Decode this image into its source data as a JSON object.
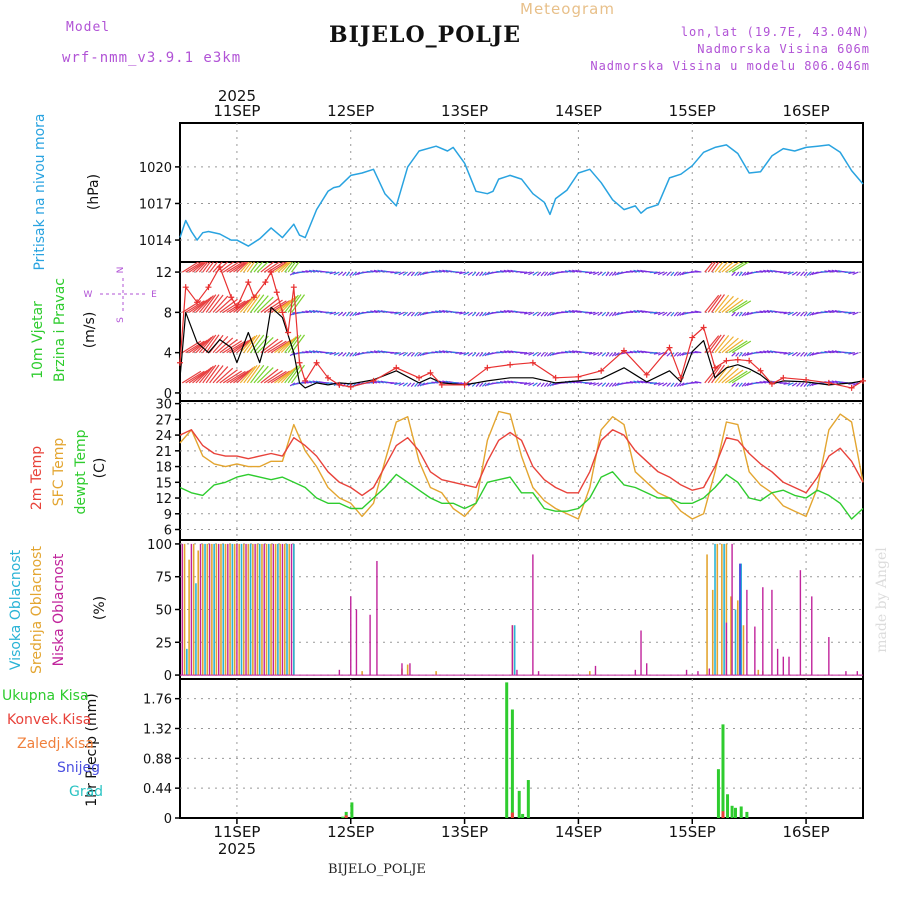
{
  "header": {
    "model_label": "Model",
    "model_name": "wrf-nmm_v3.9.1 e3km",
    "title": "BIJELO_POLJE",
    "chart_label": "Meteogram",
    "lonlat": "lon,lat (19.7E, 43.04N)",
    "altitude": "Nadmorska Visina 606m",
    "model_altitude": "Nadmorska Visina u modelu 806.046m"
  },
  "footer": {
    "station": "BIJELO_POLJE",
    "watermark": "made by Angel"
  },
  "colors": {
    "pressure": "#29a3e0",
    "wind_speed": "#000000",
    "gusts": "#e83030",
    "t2m": "#e8423a",
    "tsfc": "#e3a530",
    "dewpt": "#2ecc2e",
    "high_cloud": "#2ab3d6",
    "mid_cloud": "#e3a530",
    "low_cloud": "#c0239b",
    "total_rain": "#2ecc2e",
    "conv_rain": "#e8423a",
    "frz_rain": "#f0803c",
    "snow": "#4b50e0",
    "hail": "#2ac3c3",
    "barb_fast": "#e84040",
    "barb_slow": "#7a2de0"
  },
  "chart_data": [
    {
      "type": "line",
      "id": "pressure",
      "ylabel_name": "Pritisak na nivou mora",
      "ylabel_unit": "(hPa)",
      "ylim": [
        1012.2,
        1023.6
      ],
      "yticks": [
        1014,
        1017,
        1020
      ],
      "x_unit": "day index (0 = 11SEP 00UTC)",
      "xlim": [
        -0.5,
        5.5
      ],
      "x": [
        -0.5,
        -0.45,
        -0.4,
        -0.35,
        -0.3,
        -0.25,
        -0.15,
        -0.05,
        0,
        0.1,
        0.2,
        0.3,
        0.4,
        0.5,
        0.55,
        0.6,
        0.7,
        0.8,
        0.85,
        0.9,
        1,
        1.1,
        1.2,
        1.3,
        1.4,
        1.5,
        1.6,
        1.75,
        1.85,
        1.9,
        2,
        2.1,
        2.2,
        2.25,
        2.3,
        2.4,
        2.5,
        2.6,
        2.7,
        2.75,
        2.8,
        2.9,
        3,
        3.1,
        3.2,
        3.3,
        3.4,
        3.5,
        3.55,
        3.6,
        3.7,
        3.8,
        3.9,
        4,
        4.1,
        4.2,
        4.3,
        4.4,
        4.5,
        4.6,
        4.7,
        4.75,
        4.8,
        4.9,
        5,
        5.1,
        5.2,
        5.3,
        5.4,
        5.5
      ],
      "values": [
        1014.2,
        1015.6,
        1014.7,
        1014.0,
        1014.6,
        1014.7,
        1014.5,
        1014.0,
        1014.0,
        1013.5,
        1014.1,
        1015.0,
        1014.2,
        1015.3,
        1014.4,
        1014.2,
        1016.5,
        1018.0,
        1018.3,
        1018.4,
        1019.3,
        1019.5,
        1019.8,
        1017.8,
        1016.8,
        1020.0,
        1021.3,
        1021.7,
        1021.3,
        1021.6,
        1020.3,
        1018.0,
        1017.8,
        1018.0,
        1019.0,
        1019.3,
        1019.0,
        1017.8,
        1017.1,
        1016.1,
        1017.4,
        1018.1,
        1019.5,
        1019.8,
        1018.7,
        1017.3,
        1016.5,
        1016.8,
        1016.2,
        1016.6,
        1016.9,
        1019.1,
        1019.4,
        1020.1,
        1021.2,
        1021.6,
        1021.8,
        1021.1,
        1019.5,
        1019.6,
        1020.9,
        1021.2,
        1021.5,
        1021.3,
        1021.6,
        1021.7,
        1021.8,
        1021.2,
        1019.7,
        1018.6
      ]
    },
    {
      "type": "line",
      "id": "wind",
      "ylabel_name": "10m Vjetar",
      "ylabel_name2": "Brzina i Pravac",
      "ylabel_unit": "(m/s)",
      "compass": [
        "N",
        "S",
        "W",
        "E"
      ],
      "ylim": [
        -0.8,
        13
      ],
      "yticks": [
        0,
        4,
        8,
        12
      ],
      "xlim": [
        -0.5,
        5.5
      ],
      "barb_row_levels": [
        12,
        8,
        4,
        1
      ],
      "wind_speed": {
        "x": [
          -0.5,
          -0.45,
          -0.35,
          -0.25,
          -0.15,
          -0.05,
          0,
          0.1,
          0.2,
          0.25,
          0.3,
          0.4,
          0.5,
          0.55,
          0.6,
          0.7,
          0.8,
          0.9,
          1,
          1.2,
          1.4,
          1.6,
          1.7,
          1.8,
          2,
          2.2,
          2.4,
          2.6,
          2.8,
          3,
          3.2,
          3.4,
          3.6,
          3.8,
          3.9,
          4,
          4.1,
          4.2,
          4.3,
          4.4,
          4.5,
          4.6,
          4.7,
          4.8,
          5,
          5.2,
          5.4,
          5.5
        ],
        "values": [
          1.5,
          8,
          5,
          4,
          5.3,
          4.5,
          3,
          6,
          3,
          5,
          8.5,
          7.5,
          4,
          1,
          0.5,
          1,
          0.8,
          1,
          0.9,
          1.3,
          2.2,
          1,
          1.5,
          1,
          0.8,
          1.2,
          1.5,
          1.5,
          1,
          1.2,
          1.4,
          2.5,
          1.1,
          2.2,
          1.1,
          4.1,
          5.2,
          1.5,
          2.5,
          2.8,
          2.4,
          1.8,
          0.9,
          1.2,
          1.1,
          0.8,
          1,
          1.2
        ]
      },
      "gusts": {
        "x": [
          -0.5,
          -0.45,
          -0.35,
          -0.25,
          -0.15,
          -0.05,
          0,
          0.1,
          0.15,
          0.25,
          0.3,
          0.35,
          0.4,
          0.45,
          0.5,
          0.55,
          0.6,
          0.7,
          0.8,
          0.9,
          1,
          1.2,
          1.4,
          1.6,
          1.7,
          1.8,
          2,
          2.2,
          2.4,
          2.6,
          2.8,
          3,
          3.2,
          3.4,
          3.6,
          3.8,
          3.9,
          4,
          4.1,
          4.2,
          4.3,
          4.4,
          4.5,
          4.6,
          4.7,
          4.8,
          5,
          5.2,
          5.4,
          5.5
        ],
        "values": [
          3,
          10.5,
          9,
          10.5,
          12.5,
          9.5,
          8.5,
          11,
          9.5,
          11,
          12,
          10,
          8,
          6,
          10.5,
          3,
          1.2,
          3,
          1.5,
          0.8,
          0.6,
          1.2,
          2.5,
          1.5,
          2,
          0.8,
          0.8,
          2.5,
          2.8,
          3,
          1.5,
          1.6,
          2.2,
          4.2,
          1.8,
          4.5,
          1.5,
          5.5,
          6.5,
          2.5,
          3.2,
          3.3,
          3.2,
          2.2,
          0.9,
          1.5,
          1.3,
          1,
          0.5,
          1.2
        ]
      }
    },
    {
      "type": "line",
      "id": "temperature",
      "ylabel_name": "2m Temp",
      "ylabel_name2": "SFC Temp",
      "ylabel_name3": "dewpt Temp",
      "ylabel_unit": "(C)",
      "ylim": [
        4,
        30.5
      ],
      "yticks": [
        6,
        9,
        12,
        15,
        18,
        21,
        24,
        27,
        30
      ],
      "xlim": [
        -0.5,
        5.5
      ],
      "t2m": {
        "x": [
          -0.5,
          -0.4,
          -0.3,
          -0.2,
          -0.1,
          0,
          0.1,
          0.2,
          0.3,
          0.4,
          0.5,
          0.6,
          0.7,
          0.8,
          0.9,
          1,
          1.1,
          1.2,
          1.3,
          1.4,
          1.5,
          1.6,
          1.7,
          1.8,
          1.9,
          2,
          2.1,
          2.2,
          2.3,
          2.4,
          2.5,
          2.6,
          2.7,
          2.8,
          2.9,
          3,
          3.1,
          3.2,
          3.3,
          3.4,
          3.5,
          3.6,
          3.7,
          3.8,
          3.9,
          4,
          4.1,
          4.2,
          4.3,
          4.4,
          4.5,
          4.6,
          4.7,
          4.8,
          4.9,
          5,
          5.1,
          5.2,
          5.3,
          5.4,
          5.5
        ],
        "values": [
          24,
          25,
          22,
          20.5,
          20,
          20,
          19.5,
          20,
          20.5,
          20,
          23.5,
          22,
          20,
          17,
          15,
          14,
          12.5,
          14,
          18,
          22,
          23.5,
          21,
          17,
          15.5,
          15,
          14.5,
          14,
          19,
          23,
          24.5,
          23,
          18,
          15.5,
          14,
          13,
          13,
          17,
          23,
          25,
          24,
          21,
          19,
          17,
          16,
          14.5,
          13.5,
          14,
          18,
          23.5,
          23,
          20.5,
          18.5,
          17,
          15,
          14,
          13,
          16,
          20,
          21.5,
          19,
          15
        ]
      },
      "tsfc": {
        "x": [
          -0.5,
          -0.4,
          -0.3,
          -0.2,
          -0.1,
          0,
          0.1,
          0.2,
          0.3,
          0.4,
          0.5,
          0.6,
          0.7,
          0.8,
          0.9,
          1,
          1.1,
          1.2,
          1.3,
          1.4,
          1.5,
          1.6,
          1.7,
          1.8,
          1.9,
          2,
          2.1,
          2.2,
          2.3,
          2.4,
          2.5,
          2.6,
          2.7,
          2.8,
          2.9,
          3,
          3.1,
          3.2,
          3.3,
          3.4,
          3.5,
          3.6,
          3.7,
          3.8,
          3.9,
          4,
          4.1,
          4.2,
          4.3,
          4.4,
          4.5,
          4.6,
          4.7,
          4.8,
          4.9,
          5,
          5.1,
          5.2,
          5.3,
          5.4,
          5.5
        ],
        "values": [
          22.5,
          25,
          20,
          18.5,
          18,
          18.5,
          18,
          18,
          19,
          19,
          26,
          21,
          18,
          14,
          12,
          11,
          8.5,
          11,
          19,
          26.5,
          27.5,
          19,
          14,
          13,
          10,
          8.5,
          11,
          23,
          28.5,
          28,
          20,
          14,
          11.5,
          10,
          9,
          8,
          14,
          25,
          27.5,
          26,
          17,
          15,
          13,
          12,
          9.5,
          8,
          9,
          17,
          26.5,
          26,
          17,
          14.5,
          13,
          10.5,
          9.5,
          8.5,
          14,
          25,
          28,
          26.5,
          15
        ]
      },
      "dewpt": {
        "x": [
          -0.5,
          -0.4,
          -0.3,
          -0.2,
          -0.1,
          0,
          0.1,
          0.2,
          0.3,
          0.4,
          0.5,
          0.6,
          0.7,
          0.8,
          0.9,
          1,
          1.1,
          1.2,
          1.3,
          1.4,
          1.5,
          1.6,
          1.7,
          1.8,
          1.9,
          2,
          2.1,
          2.2,
          2.3,
          2.4,
          2.5,
          2.6,
          2.7,
          2.8,
          2.9,
          3,
          3.1,
          3.2,
          3.3,
          3.4,
          3.5,
          3.6,
          3.7,
          3.8,
          3.9,
          4,
          4.1,
          4.2,
          4.3,
          4.4,
          4.5,
          4.6,
          4.7,
          4.8,
          4.9,
          5,
          5.1,
          5.2,
          5.3,
          5.4,
          5.5
        ],
        "values": [
          14,
          13,
          12.5,
          14.5,
          15,
          16,
          16.5,
          16,
          15.5,
          16,
          15,
          14,
          12,
          11,
          11,
          10,
          10,
          12,
          14,
          16.5,
          15,
          13.5,
          12,
          11,
          11,
          10,
          11,
          15,
          15.5,
          16,
          13,
          13,
          10,
          9.5,
          9.5,
          10,
          12,
          16,
          17,
          14.5,
          14,
          13,
          12,
          12,
          11,
          11,
          12,
          14,
          16.5,
          15,
          12,
          11.5,
          13,
          13.5,
          12.5,
          12,
          13.5,
          12.5,
          11,
          8,
          10
        ]
      }
    },
    {
      "type": "bar",
      "id": "cloud",
      "ylabel_name": "Visoka Oblacnost",
      "ylabel_name2": "Srednja Oblacnost",
      "ylabel_name3": "Niska Oblacnost",
      "ylabel_unit": "(%)",
      "ylim": [
        -3,
        103
      ],
      "yticks": [
        0,
        25,
        50,
        75,
        100
      ],
      "xlim": [
        -0.5,
        5.5
      ],
      "mid": {
        "x": [
          -0.46,
          -0.42,
          -0.38,
          -0.34,
          -0.3,
          -0.26,
          -0.22,
          -0.18,
          -0.14,
          -0.1,
          -0.06,
          -0.02,
          0.02,
          0.06,
          0.1,
          0.14,
          0.18,
          0.22,
          0.26,
          0.3,
          0.34,
          0.38,
          0.42,
          0.46,
          0.5,
          1.1,
          1.45,
          1.5,
          1.75,
          2.42,
          3.1,
          4.13,
          4.18,
          4.22,
          4.26,
          4.3,
          4.34,
          4.4,
          4.45,
          4.58,
          4.62
        ],
        "values": [
          100,
          88,
          100,
          95,
          100,
          100,
          100,
          100,
          100,
          100,
          100,
          100,
          100,
          100,
          100,
          100,
          100,
          100,
          100,
          100,
          100,
          100,
          100,
          100,
          100,
          3,
          5,
          8,
          3,
          38,
          3,
          92,
          65,
          100,
          100,
          100,
          60,
          57,
          38,
          4,
          3
        ]
      },
      "high": {
        "x": [
          -0.44,
          -0.36,
          -0.28,
          -0.2,
          -0.12,
          -0.04,
          0.04,
          0.12,
          0.2,
          0.28,
          0.36,
          0.44,
          0.5,
          2.44,
          4.2,
          4.28,
          4.38,
          4.43
        ],
        "values": [
          20,
          70,
          100,
          100,
          100,
          100,
          100,
          100,
          100,
          100,
          100,
          100,
          100,
          38,
          100,
          100,
          50,
          85
        ]
      },
      "low": {
        "x": [
          -0.48,
          -0.4,
          -0.32,
          -0.24,
          -0.16,
          -0.08,
          0,
          0.08,
          0.16,
          0.24,
          0.32,
          0.4,
          0.48,
          0.9,
          1,
          1.05,
          1.17,
          1.23,
          1.45,
          1.52,
          2.42,
          2.46,
          2.6,
          2.65,
          3.15,
          3.5,
          3.55,
          3.6,
          3.95,
          4.05,
          4.15,
          4.3,
          4.35,
          4.42,
          4.48,
          4.55,
          4.62,
          4.7,
          4.75,
          4.8,
          4.85,
          4.95,
          5.05,
          5.2,
          5.35,
          5.45
        ],
        "values": [
          100,
          100,
          100,
          100,
          100,
          100,
          100,
          100,
          100,
          100,
          100,
          100,
          100,
          4,
          60,
          50,
          46,
          87,
          9,
          9,
          38,
          4,
          92,
          3,
          7,
          4,
          34,
          9,
          4,
          3,
          5,
          40,
          100,
          60,
          65,
          37,
          67,
          65,
          20,
          14,
          14,
          80,
          60,
          29,
          3,
          3
        ]
      }
    },
    {
      "type": "bar",
      "id": "precip",
      "ylabel_name": "1hr Precip",
      "ylabel_unit": "(mm)",
      "legend": [
        "Ukupna Kisa",
        "Konvek.Kisa",
        "Zaledj.Kisa",
        "Snijeg",
        "Grad"
      ],
      "ylim": [
        0,
        2.05
      ],
      "yticks": [
        0,
        0.44,
        0.88,
        1.32,
        1.76
      ],
      "xlim": [
        -0.5,
        5.5
      ],
      "total": {
        "x": [
          0.93,
          0.96,
          1.01,
          2.37,
          2.42,
          2.48,
          2.51,
          2.56,
          4.23,
          4.27,
          4.31,
          4.35,
          4.38,
          4.43,
          4.48
        ],
        "values": [
          0.02,
          0.09,
          0.23,
          2.0,
          1.6,
          0.4,
          0.06,
          0.56,
          0.72,
          1.38,
          0.35,
          0.18,
          0.15,
          0.17,
          0.09
        ]
      },
      "convective": {
        "x": [
          0.96,
          2.42,
          4.27
        ],
        "values": [
          0.04,
          0.08,
          0.1
        ]
      }
    }
  ],
  "time_axis": {
    "year": "2025",
    "labels": [
      "11SEP",
      "12SEP",
      "13SEP",
      "14SEP",
      "15SEP",
      "16SEP"
    ],
    "positions": [
      0,
      1,
      2,
      3,
      4,
      5
    ]
  }
}
